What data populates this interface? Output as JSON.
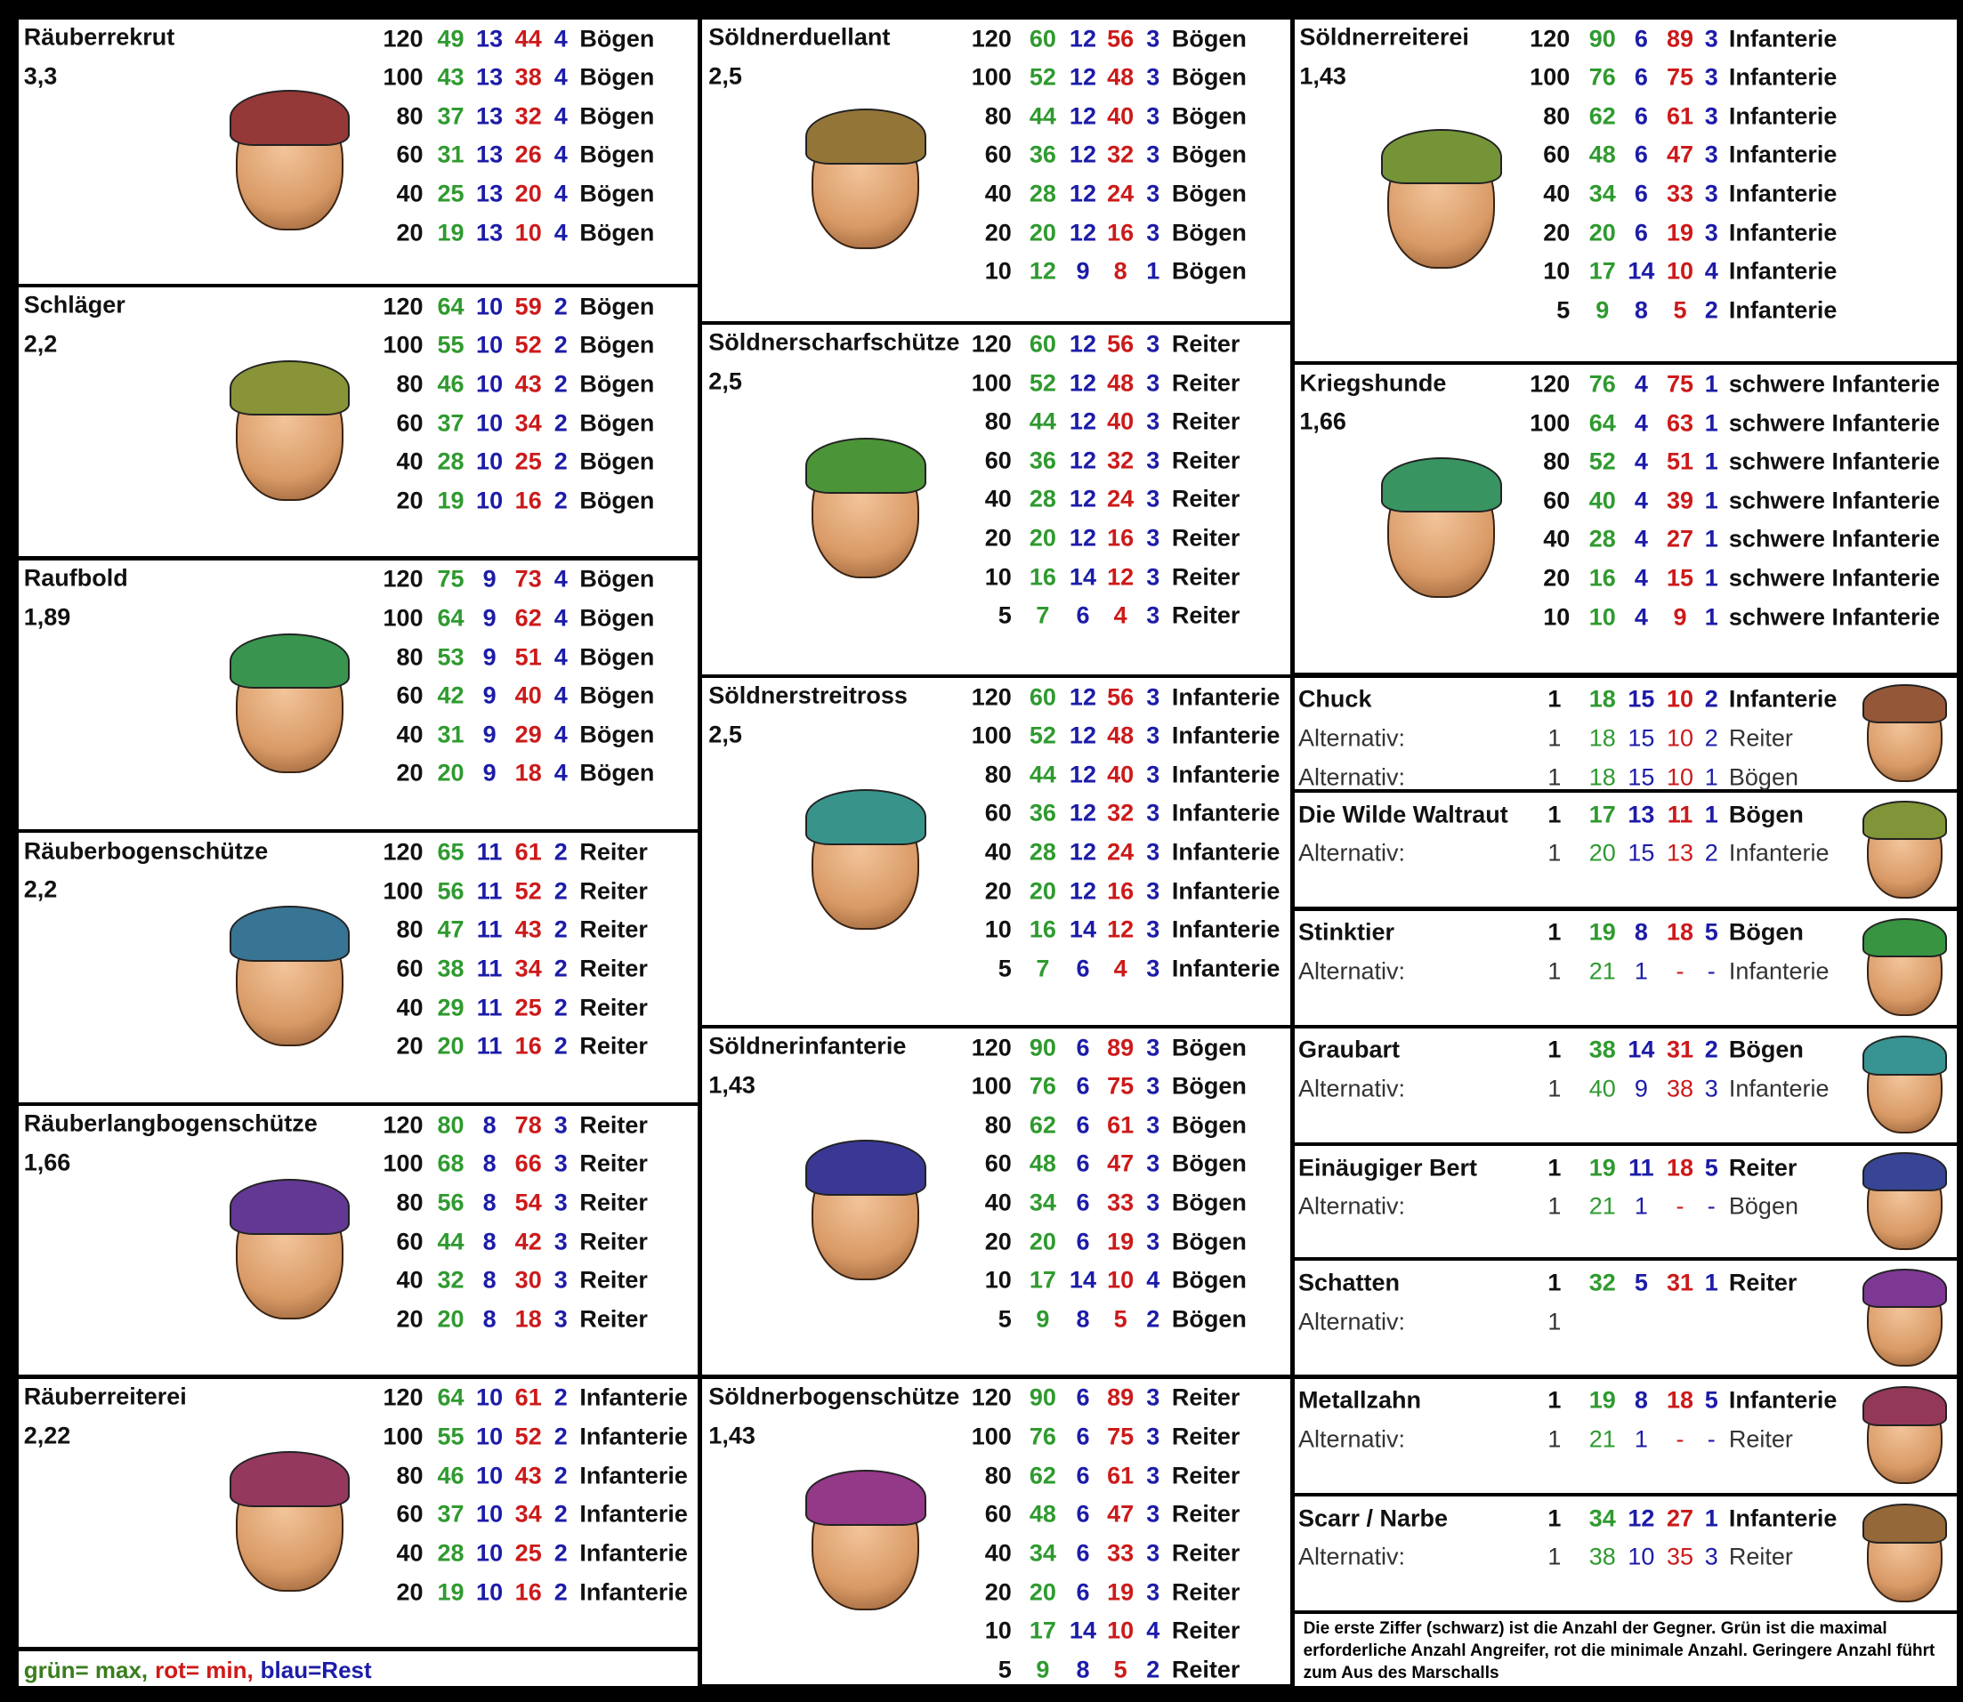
{
  "columns": [
    {
      "units": [
        {
          "name": "Räuberrekrut",
          "factor": "3,3",
          "rows": [
            [
              120,
              49,
              13,
              44,
              4,
              "Bögen"
            ],
            [
              100,
              43,
              13,
              38,
              4,
              "Bögen"
            ],
            [
              80,
              37,
              13,
              32,
              4,
              "Bögen"
            ],
            [
              60,
              31,
              13,
              26,
              4,
              "Bögen"
            ],
            [
              40,
              25,
              13,
              20,
              4,
              "Bögen"
            ],
            [
              20,
              19,
              13,
              10,
              4,
              "Bögen"
            ]
          ]
        },
        {
          "name": "Schläger",
          "factor": "2,2",
          "rows": [
            [
              120,
              64,
              10,
              59,
              2,
              "Bögen"
            ],
            [
              100,
              55,
              10,
              52,
              2,
              "Bögen"
            ],
            [
              80,
              46,
              10,
              43,
              2,
              "Bögen"
            ],
            [
              60,
              37,
              10,
              34,
              2,
              "Bögen"
            ],
            [
              40,
              28,
              10,
              25,
              2,
              "Bögen"
            ],
            [
              20,
              19,
              10,
              16,
              2,
              "Bögen"
            ]
          ]
        },
        {
          "name": "Raufbold",
          "factor": "1,89",
          "rows": [
            [
              120,
              75,
              9,
              73,
              4,
              "Bögen"
            ],
            [
              100,
              64,
              9,
              62,
              4,
              "Bögen"
            ],
            [
              80,
              53,
              9,
              51,
              4,
              "Bögen"
            ],
            [
              60,
              42,
              9,
              40,
              4,
              "Bögen"
            ],
            [
              40,
              31,
              9,
              29,
              4,
              "Bögen"
            ],
            [
              20,
              20,
              9,
              18,
              4,
              "Bögen"
            ]
          ]
        },
        {
          "name": "Räuberbogenschütze",
          "factor": "2,2",
          "rows": [
            [
              120,
              65,
              11,
              61,
              2,
              "Reiter"
            ],
            [
              100,
              56,
              11,
              52,
              2,
              "Reiter"
            ],
            [
              80,
              47,
              11,
              43,
              2,
              "Reiter"
            ],
            [
              60,
              38,
              11,
              34,
              2,
              "Reiter"
            ],
            [
              40,
              29,
              11,
              25,
              2,
              "Reiter"
            ],
            [
              20,
              20,
              11,
              16,
              2,
              "Reiter"
            ]
          ]
        },
        {
          "name": "Räuberlangbogenschütze",
          "factor": "1,66",
          "rows": [
            [
              120,
              80,
              8,
              78,
              3,
              "Reiter"
            ],
            [
              100,
              68,
              8,
              66,
              3,
              "Reiter"
            ],
            [
              80,
              56,
              8,
              54,
              3,
              "Reiter"
            ],
            [
              60,
              44,
              8,
              42,
              3,
              "Reiter"
            ],
            [
              40,
              32,
              8,
              30,
              3,
              "Reiter"
            ],
            [
              20,
              20,
              8,
              18,
              3,
              "Reiter"
            ]
          ]
        },
        {
          "name": "Räuberreiterei",
          "factor": "2,22",
          "rows": [
            [
              120,
              64,
              10,
              61,
              2,
              "Infanterie"
            ],
            [
              100,
              55,
              10,
              52,
              2,
              "Infanterie"
            ],
            [
              80,
              46,
              10,
              43,
              2,
              "Infanterie"
            ],
            [
              60,
              37,
              10,
              34,
              2,
              "Infanterie"
            ],
            [
              40,
              28,
              10,
              25,
              2,
              "Infanterie"
            ],
            [
              20,
              19,
              10,
              16,
              2,
              "Infanterie"
            ]
          ]
        }
      ]
    },
    {
      "units": [
        {
          "name": "Söldnerduellant",
          "factor": "2,5",
          "rows": [
            [
              120,
              60,
              12,
              56,
              3,
              "Bögen"
            ],
            [
              100,
              52,
              12,
              48,
              3,
              "Bögen"
            ],
            [
              80,
              44,
              12,
              40,
              3,
              "Bögen"
            ],
            [
              60,
              36,
              12,
              32,
              3,
              "Bögen"
            ],
            [
              40,
              28,
              12,
              24,
              3,
              "Bögen"
            ],
            [
              20,
              20,
              12,
              16,
              3,
              "Bögen"
            ],
            [
              10,
              12,
              9,
              8,
              1,
              "Bögen"
            ]
          ]
        },
        {
          "name": "Söldnerscharfschütze",
          "factor": "2,5",
          "rows": [
            [
              120,
              60,
              12,
              56,
              3,
              "Reiter"
            ],
            [
              100,
              52,
              12,
              48,
              3,
              "Reiter"
            ],
            [
              80,
              44,
              12,
              40,
              3,
              "Reiter"
            ],
            [
              60,
              36,
              12,
              32,
              3,
              "Reiter"
            ],
            [
              40,
              28,
              12,
              24,
              3,
              "Reiter"
            ],
            [
              20,
              20,
              12,
              16,
              3,
              "Reiter"
            ],
            [
              10,
              16,
              14,
              12,
              3,
              "Reiter"
            ],
            [
              5,
              7,
              6,
              4,
              3,
              "Reiter"
            ]
          ]
        },
        {
          "name": "Söldnerstreitross",
          "factor": "2,5",
          "rows": [
            [
              120,
              60,
              12,
              56,
              3,
              "Infanterie"
            ],
            [
              100,
              52,
              12,
              48,
              3,
              "Infanterie"
            ],
            [
              80,
              44,
              12,
              40,
              3,
              "Infanterie"
            ],
            [
              60,
              36,
              12,
              32,
              3,
              "Infanterie"
            ],
            [
              40,
              28,
              12,
              24,
              3,
              "Infanterie"
            ],
            [
              20,
              20,
              12,
              16,
              3,
              "Infanterie"
            ],
            [
              10,
              16,
              14,
              12,
              3,
              "Infanterie"
            ],
            [
              5,
              7,
              6,
              4,
              3,
              "Infanterie"
            ]
          ]
        },
        {
          "name": "Söldnerinfanterie",
          "factor": "1,43",
          "rows": [
            [
              120,
              90,
              6,
              89,
              3,
              "Bögen"
            ],
            [
              100,
              76,
              6,
              75,
              3,
              "Bögen"
            ],
            [
              80,
              62,
              6,
              61,
              3,
              "Bögen"
            ],
            [
              60,
              48,
              6,
              47,
              3,
              "Bögen"
            ],
            [
              40,
              34,
              6,
              33,
              3,
              "Bögen"
            ],
            [
              20,
              20,
              6,
              19,
              3,
              "Bögen"
            ],
            [
              10,
              17,
              14,
              10,
              4,
              "Bögen"
            ],
            [
              5,
              9,
              8,
              5,
              2,
              "Bögen"
            ]
          ]
        },
        {
          "name": "Söldnerbogenschütze",
          "factor": "1,43",
          "rows": [
            [
              120,
              90,
              6,
              89,
              3,
              "Reiter"
            ],
            [
              100,
              76,
              6,
              75,
              3,
              "Reiter"
            ],
            [
              80,
              62,
              6,
              61,
              3,
              "Reiter"
            ],
            [
              60,
              48,
              6,
              47,
              3,
              "Reiter"
            ],
            [
              40,
              34,
              6,
              33,
              3,
              "Reiter"
            ],
            [
              20,
              20,
              6,
              19,
              3,
              "Reiter"
            ],
            [
              10,
              17,
              14,
              10,
              4,
              "Reiter"
            ],
            [
              5,
              9,
              8,
              5,
              2,
              "Reiter"
            ]
          ]
        }
      ]
    },
    {
      "units": [
        {
          "name": "Söldnerreiterei",
          "factor": "1,43",
          "rows": [
            [
              120,
              90,
              6,
              89,
              3,
              "Infanterie"
            ],
            [
              100,
              76,
              6,
              75,
              3,
              "Infanterie"
            ],
            [
              80,
              62,
              6,
              61,
              3,
              "Infanterie"
            ],
            [
              60,
              48,
              6,
              47,
              3,
              "Infanterie"
            ],
            [
              40,
              34,
              6,
              33,
              3,
              "Infanterie"
            ],
            [
              20,
              20,
              6,
              19,
              3,
              "Infanterie"
            ],
            [
              10,
              17,
              14,
              10,
              4,
              "Infanterie"
            ],
            [
              5,
              9,
              8,
              5,
              2,
              "Infanterie"
            ]
          ]
        },
        {
          "name": "Kriegshunde",
          "factor": "1,66",
          "rows": [
            [
              120,
              76,
              4,
              75,
              1,
              "schwere Infanterie"
            ],
            [
              100,
              64,
              4,
              63,
              1,
              "schwere Infanterie"
            ],
            [
              80,
              52,
              4,
              51,
              1,
              "schwere Infanterie"
            ],
            [
              60,
              40,
              4,
              39,
              1,
              "schwere Infanterie"
            ],
            [
              40,
              28,
              4,
              27,
              1,
              "schwere Infanterie"
            ],
            [
              20,
              16,
              4,
              15,
              1,
              "schwere Infanterie"
            ],
            [
              10,
              10,
              4,
              9,
              1,
              "schwere Infanterie"
            ]
          ]
        }
      ],
      "heroes": [
        {
          "name": "Chuck",
          "stats": [
            1,
            18,
            15,
            10,
            2,
            "Infanterie"
          ],
          "alternatives": [
            {
              "label": "Alternativ:",
              "stats": [
                1,
                18,
                15,
                10,
                2,
                "Reiter"
              ]
            },
            {
              "label": "Alternativ:",
              "stats": [
                1,
                18,
                15,
                10,
                1,
                "Bögen"
              ]
            }
          ]
        },
        {
          "name": "Die Wilde Waltraut",
          "stats": [
            1,
            17,
            13,
            11,
            1,
            "Bögen"
          ],
          "alternatives": [
            {
              "label": "Alternativ:",
              "stats": [
                1,
                20,
                15,
                13,
                2,
                "Infanterie"
              ]
            }
          ]
        },
        {
          "name": "Stinktier",
          "stats": [
            1,
            19,
            8,
            18,
            5,
            "Bögen"
          ],
          "alternatives": [
            {
              "label": "Alternativ:",
              "stats": [
                1,
                21,
                1,
                "-",
                "-",
                "Infanterie"
              ]
            }
          ]
        },
        {
          "name": "Graubart",
          "stats": [
            1,
            38,
            14,
            31,
            2,
            "Bögen"
          ],
          "alternatives": [
            {
              "label": "Alternativ:",
              "stats": [
                1,
                40,
                9,
                38,
                3,
                "Infanterie"
              ]
            }
          ]
        },
        {
          "name": "Einäugiger Bert",
          "stats": [
            1,
            19,
            11,
            18,
            5,
            "Reiter"
          ],
          "alternatives": [
            {
              "label": "Alternativ:",
              "stats": [
                1,
                21,
                1,
                "-",
                "-",
                "Bögen"
              ]
            }
          ]
        },
        {
          "name": "Schatten",
          "stats": [
            1,
            32,
            5,
            31,
            1,
            "Reiter"
          ],
          "alternatives": [
            {
              "label": "Alternativ:",
              "stats": [
                1
              ]
            }
          ]
        },
        {
          "name": "Metallzahn",
          "stats": [
            1,
            19,
            8,
            18,
            5,
            "Infanterie"
          ],
          "alternatives": [
            {
              "label": "Alternativ:",
              "stats": [
                1,
                21,
                1,
                "-",
                "-",
                "Reiter"
              ]
            }
          ]
        },
        {
          "name": "Scarr / Narbe",
          "stats": [
            1,
            34,
            12,
            27,
            1,
            "Infanterie"
          ],
          "alternatives": [
            {
              "label": "Alternativ:",
              "stats": [
                1,
                38,
                10,
                35,
                3,
                "Reiter"
              ]
            }
          ]
        }
      ]
    }
  ],
  "legend": [
    {
      "text": "grün= max,",
      "color": "#3a7d1e"
    },
    {
      "text": "rot= min,",
      "color": "#d01818"
    },
    {
      "text": "blau=Rest",
      "color": "#1c1ca8"
    }
  ],
  "note": "Die erste Ziffer (schwarz) ist die Anzahl der Gegner. Grün ist die maximal erforderliche Anzahl Angreifer, rot die minimale Anzahl. Geringere Anzahl führt zum Aus des Marschalls"
}
